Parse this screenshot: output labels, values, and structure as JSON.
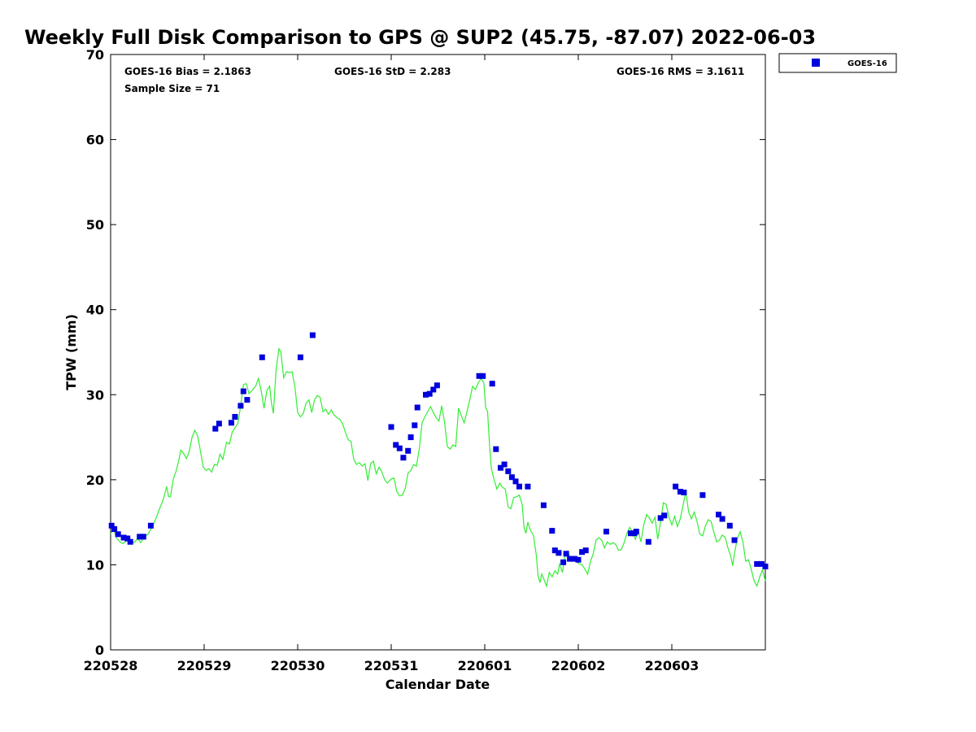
{
  "chart_data": {
    "type": "scatter",
    "title": "Weekly Full Disk Comparison to GPS @ SUP2 (45.75, -87.07) 2022-06-03",
    "xlabel": "Calendar Date",
    "ylabel": "TPW (mm)",
    "ylim": [
      0,
      70
    ],
    "yticks": [
      "0",
      "10",
      "20",
      "30",
      "40",
      "50",
      "60",
      "70"
    ],
    "xlim": [
      0,
      7
    ],
    "xticks": [
      {
        "pos": 0,
        "label": "220528"
      },
      {
        "pos": 1,
        "label": "220529"
      },
      {
        "pos": 2,
        "label": "220530"
      },
      {
        "pos": 3,
        "label": "220531"
      },
      {
        "pos": 4,
        "label": "220601"
      },
      {
        "pos": 5,
        "label": "220602"
      },
      {
        "pos": 6,
        "label": "220603"
      }
    ],
    "grid": false,
    "legend_position": "top-right",
    "stats": {
      "bias": "GOES-16 Bias = 2.1863",
      "std": "GOES-16 StD = 2.283",
      "rms": "GOES-16 RMS = 3.1611",
      "sample": "Sample Size = 71"
    },
    "colors": {
      "goes": "#0000dd",
      "gps": "#33ee33"
    },
    "series": [
      {
        "name": "GOES-16",
        "marker": "square",
        "points": [
          [
            0.01,
            14.6
          ],
          [
            0.04,
            14.2
          ],
          [
            0.08,
            13.6
          ],
          [
            0.14,
            13.2
          ],
          [
            0.18,
            13.1
          ],
          [
            0.21,
            12.7
          ],
          [
            0.31,
            13.3
          ],
          [
            0.35,
            13.3
          ],
          [
            0.43,
            14.6
          ],
          [
            1.12,
            26.0
          ],
          [
            1.16,
            26.6
          ],
          [
            1.29,
            26.7
          ],
          [
            1.33,
            27.4
          ],
          [
            1.39,
            28.7
          ],
          [
            1.42,
            30.4
          ],
          [
            1.46,
            29.4
          ],
          [
            1.62,
            34.4
          ],
          [
            2.03,
            34.4
          ],
          [
            2.16,
            37.0
          ],
          [
            3.0,
            26.2
          ],
          [
            3.05,
            24.1
          ],
          [
            3.09,
            23.7
          ],
          [
            3.13,
            22.6
          ],
          [
            3.18,
            23.4
          ],
          [
            3.21,
            25.0
          ],
          [
            3.25,
            26.4
          ],
          [
            3.28,
            28.5
          ],
          [
            3.37,
            30.0
          ],
          [
            3.41,
            30.1
          ],
          [
            3.45,
            30.6
          ],
          [
            3.49,
            31.1
          ],
          [
            3.94,
            32.2
          ],
          [
            3.98,
            32.2
          ],
          [
            4.08,
            31.3
          ],
          [
            4.12,
            23.6
          ],
          [
            4.17,
            21.4
          ],
          [
            4.21,
            21.8
          ],
          [
            4.25,
            21.0
          ],
          [
            4.29,
            20.3
          ],
          [
            4.33,
            19.8
          ],
          [
            4.37,
            19.2
          ],
          [
            4.46,
            19.2
          ],
          [
            4.63,
            17.0
          ],
          [
            4.72,
            14.0
          ],
          [
            4.75,
            11.7
          ],
          [
            4.79,
            11.4
          ],
          [
            4.84,
            10.3
          ],
          [
            4.87,
            11.3
          ],
          [
            4.91,
            10.7
          ],
          [
            4.96,
            10.7
          ],
          [
            5.0,
            10.6
          ],
          [
            5.04,
            11.5
          ],
          [
            5.08,
            11.7
          ],
          [
            5.3,
            13.9
          ],
          [
            5.56,
            13.7
          ],
          [
            5.6,
            13.7
          ],
          [
            5.62,
            13.9
          ],
          [
            5.75,
            12.7
          ],
          [
            5.88,
            15.5
          ],
          [
            5.92,
            15.8
          ],
          [
            6.04,
            19.2
          ],
          [
            6.09,
            18.6
          ],
          [
            6.13,
            18.5
          ],
          [
            6.33,
            18.2
          ],
          [
            6.5,
            15.9
          ],
          [
            6.54,
            15.4
          ],
          [
            6.62,
            14.6
          ],
          [
            6.67,
            12.9
          ],
          [
            6.91,
            10.1
          ],
          [
            6.96,
            10.1
          ],
          [
            7.0,
            9.8
          ]
        ]
      },
      {
        "name": "GPS",
        "line": true,
        "points": [
          [
            0.0,
            13.6
          ],
          [
            0.03,
            14.3
          ],
          [
            0.06,
            13.2
          ],
          [
            0.1,
            12.7
          ],
          [
            0.13,
            12.5
          ],
          [
            0.17,
            12.8
          ],
          [
            0.21,
            12.9
          ],
          [
            0.25,
            12.6
          ],
          [
            0.29,
            13.1
          ],
          [
            0.32,
            12.6
          ],
          [
            0.36,
            13.3
          ],
          [
            0.4,
            13.6
          ],
          [
            0.44,
            14.4
          ],
          [
            0.48,
            15.3
          ],
          [
            0.52,
            16.5
          ],
          [
            0.56,
            17.6
          ],
          [
            0.6,
            19.2
          ],
          [
            0.62,
            18.0
          ],
          [
            0.64,
            18.0
          ],
          [
            0.67,
            20.1
          ],
          [
            0.7,
            21.0
          ],
          [
            0.73,
            22.3
          ],
          [
            0.75,
            23.5
          ],
          [
            0.78,
            23.1
          ],
          [
            0.81,
            22.5
          ],
          [
            0.84,
            23.3
          ],
          [
            0.87,
            25.0
          ],
          [
            0.9,
            25.8
          ],
          [
            0.93,
            25.2
          ],
          [
            0.96,
            23.4
          ],
          [
            0.99,
            21.5
          ],
          [
            1.02,
            21.1
          ],
          [
            1.05,
            21.3
          ],
          [
            1.08,
            20.9
          ],
          [
            1.11,
            21.8
          ],
          [
            1.14,
            21.7
          ],
          [
            1.17,
            23.0
          ],
          [
            1.2,
            22.4
          ],
          [
            1.24,
            24.4
          ],
          [
            1.27,
            24.2
          ],
          [
            1.3,
            25.6
          ],
          [
            1.33,
            26.1
          ],
          [
            1.36,
            26.6
          ],
          [
            1.39,
            28.7
          ],
          [
            1.42,
            31.2
          ],
          [
            1.45,
            31.3
          ],
          [
            1.48,
            30.1
          ],
          [
            1.52,
            30.6
          ],
          [
            1.55,
            31.0
          ],
          [
            1.58,
            31.9
          ],
          [
            1.61,
            30.5
          ],
          [
            1.64,
            28.4
          ],
          [
            1.67,
            30.5
          ],
          [
            1.7,
            31.0
          ],
          [
            1.72,
            29.0
          ],
          [
            1.74,
            27.8
          ],
          [
            1.77,
            33.0
          ],
          [
            1.8,
            35.4
          ],
          [
            1.82,
            35.0
          ],
          [
            1.85,
            32.0
          ],
          [
            1.88,
            32.7
          ],
          [
            1.91,
            32.6
          ],
          [
            1.94,
            32.7
          ],
          [
            1.97,
            31.0
          ],
          [
            2.0,
            27.9
          ],
          [
            2.03,
            27.4
          ],
          [
            2.06,
            27.8
          ],
          [
            2.09,
            29.0
          ],
          [
            2.12,
            29.4
          ],
          [
            2.15,
            27.9
          ],
          [
            2.18,
            29.4
          ],
          [
            2.21,
            29.9
          ],
          [
            2.24,
            29.7
          ],
          [
            2.27,
            28.0
          ],
          [
            2.3,
            28.3
          ],
          [
            2.33,
            27.7
          ],
          [
            2.36,
            28.2
          ],
          [
            2.39,
            27.6
          ],
          [
            2.42,
            27.3
          ],
          [
            2.45,
            27.1
          ],
          [
            2.48,
            26.6
          ],
          [
            2.51,
            25.6
          ],
          [
            2.54,
            24.7
          ],
          [
            2.57,
            24.5
          ],
          [
            2.6,
            22.4
          ],
          [
            2.63,
            21.8
          ],
          [
            2.66,
            22.0
          ],
          [
            2.69,
            21.6
          ],
          [
            2.72,
            21.9
          ],
          [
            2.75,
            19.9
          ],
          [
            2.78,
            21.9
          ],
          [
            2.81,
            22.2
          ],
          [
            2.84,
            20.7
          ],
          [
            2.87,
            21.5
          ],
          [
            2.9,
            20.9
          ],
          [
            2.93,
            20.0
          ],
          [
            2.96,
            19.6
          ],
          [
            3.0,
            20.1
          ],
          [
            3.03,
            20.2
          ],
          [
            3.06,
            18.6
          ],
          [
            3.09,
            18.1
          ],
          [
            3.12,
            18.2
          ],
          [
            3.15,
            19.0
          ],
          [
            3.18,
            20.8
          ],
          [
            3.21,
            21.1
          ],
          [
            3.24,
            21.8
          ],
          [
            3.27,
            21.6
          ],
          [
            3.3,
            23.6
          ],
          [
            3.33,
            26.7
          ],
          [
            3.36,
            27.4
          ],
          [
            3.39,
            28.0
          ],
          [
            3.42,
            28.6
          ],
          [
            3.45,
            27.9
          ],
          [
            3.48,
            27.3
          ],
          [
            3.51,
            26.9
          ],
          [
            3.54,
            28.7
          ],
          [
            3.57,
            26.8
          ],
          [
            3.6,
            23.9
          ],
          [
            3.63,
            23.6
          ],
          [
            3.66,
            24.1
          ],
          [
            3.69,
            23.9
          ],
          [
            3.72,
            28.4
          ],
          [
            3.75,
            27.5
          ],
          [
            3.78,
            26.7
          ],
          [
            3.81,
            28.0
          ],
          [
            3.84,
            29.4
          ],
          [
            3.87,
            31.0
          ],
          [
            3.9,
            30.6
          ],
          [
            3.93,
            31.4
          ],
          [
            3.96,
            31.9
          ],
          [
            3.99,
            31.4
          ],
          [
            4.01,
            28.5
          ],
          [
            4.03,
            28.0
          ],
          [
            4.05,
            24.2
          ],
          [
            4.07,
            21.3
          ],
          [
            4.1,
            20.0
          ],
          [
            4.13,
            18.9
          ],
          [
            4.16,
            19.6
          ],
          [
            4.19,
            19.1
          ],
          [
            4.22,
            18.9
          ],
          [
            4.25,
            16.8
          ],
          [
            4.28,
            16.6
          ],
          [
            4.31,
            17.9
          ],
          [
            4.34,
            18.0
          ],
          [
            4.37,
            18.2
          ],
          [
            4.4,
            17.1
          ],
          [
            4.42,
            14.4
          ],
          [
            4.44,
            13.7
          ],
          [
            4.46,
            15.0
          ],
          [
            4.49,
            14.0
          ],
          [
            4.52,
            13.5
          ],
          [
            4.55,
            11.2
          ],
          [
            4.57,
            8.7
          ],
          [
            4.59,
            7.9
          ],
          [
            4.61,
            8.9
          ],
          [
            4.63,
            8.4
          ],
          [
            4.66,
            7.5
          ],
          [
            4.69,
            9.1
          ],
          [
            4.72,
            8.6
          ],
          [
            4.75,
            9.3
          ],
          [
            4.78,
            8.9
          ],
          [
            4.8,
            10.1
          ],
          [
            4.83,
            9.1
          ],
          [
            4.86,
            11.2
          ],
          [
            4.89,
            11.6
          ],
          [
            4.92,
            10.6
          ],
          [
            4.95,
            10.7
          ],
          [
            4.98,
            10.4
          ],
          [
            5.01,
            10.1
          ],
          [
            5.04,
            10.0
          ],
          [
            5.07,
            9.5
          ],
          [
            5.1,
            8.9
          ],
          [
            5.13,
            10.4
          ],
          [
            5.16,
            11.3
          ],
          [
            5.19,
            12.9
          ],
          [
            5.22,
            13.2
          ],
          [
            5.25,
            12.9
          ],
          [
            5.28,
            12.0
          ],
          [
            5.31,
            12.7
          ],
          [
            5.34,
            12.4
          ],
          [
            5.37,
            12.6
          ],
          [
            5.4,
            12.4
          ],
          [
            5.43,
            11.7
          ],
          [
            5.46,
            11.8
          ],
          [
            5.49,
            12.6
          ],
          [
            5.52,
            13.7
          ],
          [
            5.55,
            14.4
          ],
          [
            5.58,
            13.9
          ],
          [
            5.61,
            13.0
          ],
          [
            5.64,
            14.0
          ],
          [
            5.67,
            12.7
          ],
          [
            5.7,
            14.7
          ],
          [
            5.73,
            15.9
          ],
          [
            5.76,
            15.5
          ],
          [
            5.79,
            14.9
          ],
          [
            5.82,
            15.6
          ],
          [
            5.85,
            13.0
          ],
          [
            5.88,
            15.1
          ],
          [
            5.91,
            17.3
          ],
          [
            5.94,
            17.1
          ],
          [
            5.97,
            15.6
          ],
          [
            6.0,
            14.7
          ],
          [
            6.03,
            15.7
          ],
          [
            6.06,
            14.5
          ],
          [
            6.09,
            15.4
          ],
          [
            6.12,
            17.0
          ],
          [
            6.15,
            18.6
          ],
          [
            6.18,
            16.2
          ],
          [
            6.21,
            15.4
          ],
          [
            6.24,
            16.2
          ],
          [
            6.27,
            15.1
          ],
          [
            6.3,
            13.6
          ],
          [
            6.33,
            13.4
          ],
          [
            6.36,
            14.6
          ],
          [
            6.39,
            15.3
          ],
          [
            6.42,
            15.1
          ],
          [
            6.45,
            13.8
          ],
          [
            6.48,
            12.7
          ],
          [
            6.51,
            12.9
          ],
          [
            6.54,
            13.5
          ],
          [
            6.57,
            13.2
          ],
          [
            6.6,
            12.0
          ],
          [
            6.63,
            11.0
          ],
          [
            6.65,
            9.9
          ],
          [
            6.67,
            11.3
          ],
          [
            6.7,
            13.1
          ],
          [
            6.73,
            13.9
          ],
          [
            6.76,
            12.7
          ],
          [
            6.79,
            10.4
          ],
          [
            6.82,
            10.6
          ],
          [
            6.85,
            9.4
          ],
          [
            6.88,
            8.1
          ],
          [
            6.91,
            7.5
          ],
          [
            6.94,
            8.6
          ],
          [
            6.97,
            9.4
          ],
          [
            7.0,
            8.1
          ]
        ]
      }
    ]
  }
}
